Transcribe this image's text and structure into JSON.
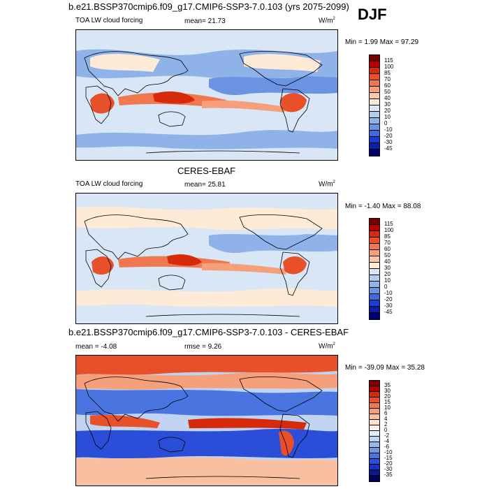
{
  "season": "DJF",
  "panels": [
    {
      "title": "b.e21.BSSP370cmip6.f09_g17.CMIP6-SSP3-7.0.103 (yrs 2075-2099)",
      "left_label": "TOA LW cloud forcing",
      "mean_label": "mean=",
      "mean_value": "21.73",
      "unit": "W/m",
      "unit_exp": "2",
      "minmax": "Min =  1.99 Max =  97.29",
      "colorbar": {
        "labels": [
          "115",
          "100",
          "85",
          "70",
          "60",
          "50",
          "40",
          "30",
          "20",
          "10",
          "0",
          "-10",
          "-20",
          "-30",
          "-45"
        ],
        "colors": [
          "#7a0000",
          "#b40000",
          "#d62a0a",
          "#e8502a",
          "#f07850",
          "#f5a07a",
          "#f8c8a8",
          "#fdebd8",
          "#d8e6f5",
          "#b4cdee",
          "#8fb2e8",
          "#6a94e2",
          "#3f6ae0",
          "#1a3fd0",
          "#0a20a8",
          "#000070"
        ]
      }
    },
    {
      "title": "CERES-EBAF",
      "left_label": "TOA LW cloud forcing",
      "mean_label": "mean=",
      "mean_value": "25.81",
      "unit": "W/m",
      "unit_exp": "2",
      "minmax": "Min = -1.40 Max =  88.08",
      "colorbar": {
        "labels": [
          "115",
          "100",
          "85",
          "70",
          "60",
          "50",
          "40",
          "30",
          "20",
          "10",
          "0",
          "-10",
          "-20",
          "-30",
          "-45"
        ],
        "colors": [
          "#7a0000",
          "#b40000",
          "#d62a0a",
          "#e8502a",
          "#f07850",
          "#f5a07a",
          "#f8c8a8",
          "#fdebd8",
          "#d8e6f5",
          "#b4cdee",
          "#8fb2e8",
          "#6a94e2",
          "#3f6ae0",
          "#1a3fd0",
          "#0a20a8",
          "#000070"
        ]
      }
    },
    {
      "title": "b.e21.BSSP370cmip6.f09_g17.CMIP6-SSP3-7.0.103 - CERES-EBAF",
      "left_label": "mean =  -4.08",
      "mean_label": "rmse =",
      "mean_value": "9.26",
      "unit": "W/m",
      "unit_exp": "2",
      "minmax": "Min = -39.09 Max =  35.28",
      "colorbar": {
        "labels": [
          "35",
          "30",
          "20",
          "15",
          "10",
          "6",
          "4",
          "2",
          "0",
          "-2",
          "-4",
          "-6",
          "-10",
          "-15",
          "-20",
          "-30",
          "-35"
        ],
        "colors": [
          "#7a0000",
          "#b40000",
          "#d62a0a",
          "#e8502a",
          "#f07850",
          "#f5a07a",
          "#f8c0a0",
          "#fde0d0",
          "#fdf2ea",
          "#e0ecf8",
          "#c0d4f2",
          "#98b8ea",
          "#6f98e4",
          "#4a74e0",
          "#2a4ed8",
          "#1a30c0",
          "#0a1890",
          "#000060"
        ]
      }
    }
  ]
}
